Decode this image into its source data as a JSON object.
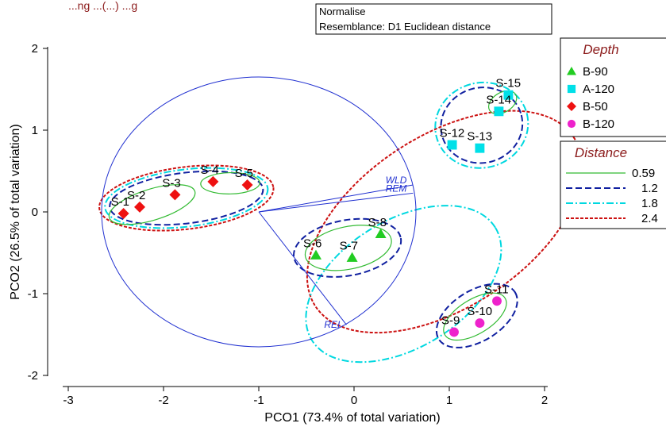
{
  "header": {
    "top_text": "...ng       ...(...)   ...g",
    "info_line1": "Normalise",
    "info_line2": "Resemblance: D1 Euclidean distance"
  },
  "colors": {
    "green": "#22cc22",
    "cyan": "#00e0e8",
    "red": "#ee1111",
    "magenta": "#ee22cc",
    "vector": "#1f2fd0",
    "ell_0_59": "#33bb33",
    "ell_1_2": "#1020a0",
    "ell_1_8": "#00d8e0",
    "ell_2_4": "#cc1111"
  },
  "legends": {
    "depth_title": "Depth",
    "depth_items": [
      {
        "label": "B-90",
        "marker": "triangle",
        "color": "#22cc22"
      },
      {
        "label": "A-120",
        "marker": "square",
        "color": "#00e0e8"
      },
      {
        "label": "B-50",
        "marker": "diamond",
        "color": "#ee1111"
      },
      {
        "label": "B-120",
        "marker": "circle",
        "color": "#ee22cc"
      }
    ],
    "distance_title": "Distance",
    "distance_items": [
      {
        "label": "0.59",
        "color": "#33bb33",
        "dash": "solid"
      },
      {
        "label": "1.2",
        "color": "#1020a0",
        "dash": "dashed"
      },
      {
        "label": "1.8",
        "color": "#00d8e0",
        "dash": "dashdot"
      },
      {
        "label": "2.4",
        "color": "#cc1111",
        "dash": "dotted"
      }
    ]
  },
  "chart_data": {
    "type": "scatter",
    "xlabel": "PCO1 (73.4% of total variation)",
    "ylabel": "PCO2 (26.5% of total variation)",
    "xlim": [
      -3.05,
      2.1
    ],
    "ylim": [
      -2.05,
      2.05
    ],
    "xticks": [
      -3,
      -2,
      -1,
      0,
      1,
      2
    ],
    "yticks": [
      -2,
      -1,
      0,
      1,
      2
    ],
    "points": [
      {
        "label": "S-1",
        "x": -2.42,
        "y": -0.02,
        "group": "B-50"
      },
      {
        "label": "S-2",
        "x": -2.25,
        "y": 0.06,
        "group": "B-50"
      },
      {
        "label": "S-3",
        "x": -1.88,
        "y": 0.21,
        "group": "B-50"
      },
      {
        "label": "S-4",
        "x": -1.48,
        "y": 0.37,
        "group": "B-50"
      },
      {
        "label": "S-5",
        "x": -1.12,
        "y": 0.33,
        "group": "B-50"
      },
      {
        "label": "S-6",
        "x": -0.4,
        "y": -0.53,
        "group": "B-90"
      },
      {
        "label": "S-7",
        "x": -0.02,
        "y": -0.56,
        "group": "B-90"
      },
      {
        "label": "S-8",
        "x": 0.28,
        "y": -0.27,
        "group": "B-90"
      },
      {
        "label": "S-9",
        "x": 1.05,
        "y": -1.47,
        "group": "B-120"
      },
      {
        "label": "S-10",
        "x": 1.32,
        "y": -1.36,
        "group": "B-120"
      },
      {
        "label": "S-11",
        "x": 1.5,
        "y": -1.09,
        "group": "B-120"
      },
      {
        "label": "S-12",
        "x": 1.03,
        "y": 0.82,
        "group": "A-120"
      },
      {
        "label": "S-13",
        "x": 1.32,
        "y": 0.78,
        "group": "A-120"
      },
      {
        "label": "S-14",
        "x": 1.52,
        "y": 1.23,
        "group": "A-120"
      },
      {
        "label": "S-15",
        "x": 1.62,
        "y": 1.43,
        "group": "A-120"
      }
    ],
    "circle": {
      "cx": -1.0,
      "cy": 0.0,
      "r": 1.65
    },
    "vectors": [
      {
        "label": "WLD",
        "x": 0.62,
        "y": 0.33
      },
      {
        "label": "REM",
        "x": 0.62,
        "y": 0.23
      },
      {
        "label": "REI",
        "x": -0.08,
        "y": -1.38
      }
    ],
    "ellipses": [
      {
        "level": "0.59",
        "cx": -2.12,
        "cy": 0.09,
        "rx": 0.47,
        "ry": 0.19,
        "rot": 0.3
      },
      {
        "level": "0.59",
        "cx": -1.3,
        "cy": 0.35,
        "rx": 0.31,
        "ry": 0.13,
        "rot": 0.02
      },
      {
        "level": "0.59",
        "cx": -0.06,
        "cy": -0.44,
        "rx": 0.46,
        "ry": 0.26,
        "rot": 0.2
      },
      {
        "level": "0.59",
        "cx": 1.27,
        "cy": -1.28,
        "rx": 0.37,
        "ry": 0.21,
        "rot": 0.55
      },
      {
        "level": "0.59",
        "cx": 1.56,
        "cy": 1.34,
        "rx": 0.16,
        "ry": 0.12,
        "rot": 0.55
      },
      {
        "level": "1.2",
        "cx": -1.76,
        "cy": 0.17,
        "rx": 0.81,
        "ry": 0.31,
        "rot": 0.12
      },
      {
        "level": "1.2",
        "cx": -0.07,
        "cy": -0.44,
        "rx": 0.57,
        "ry": 0.34,
        "rot": 0.18
      },
      {
        "level": "1.2",
        "cx": 1.29,
        "cy": -1.27,
        "rx": 0.47,
        "ry": 0.31,
        "rot": 0.55
      },
      {
        "level": "1.2",
        "cx": 1.34,
        "cy": 1.06,
        "rx": 0.43,
        "ry": 0.46,
        "rot": 0.25
      },
      {
        "level": "1.8",
        "cx": -1.76,
        "cy": 0.17,
        "rx": 0.86,
        "ry": 0.35,
        "rot": 0.12
      },
      {
        "level": "1.8",
        "cx": 0.52,
        "cy": -0.88,
        "rx": 1.13,
        "ry": 0.78,
        "rot": 0.55
      },
      {
        "level": "1.8",
        "cx": 1.34,
        "cy": 1.06,
        "rx": 0.49,
        "ry": 0.52,
        "rot": 0.25
      },
      {
        "level": "2.4",
        "cx": -1.76,
        "cy": 0.17,
        "rx": 0.92,
        "ry": 0.38,
        "rot": 0.12
      },
      {
        "level": "2.4",
        "cx": 0.95,
        "cy": -0.12,
        "rx": 1.62,
        "ry": 1.05,
        "rot": 0.58
      }
    ]
  }
}
